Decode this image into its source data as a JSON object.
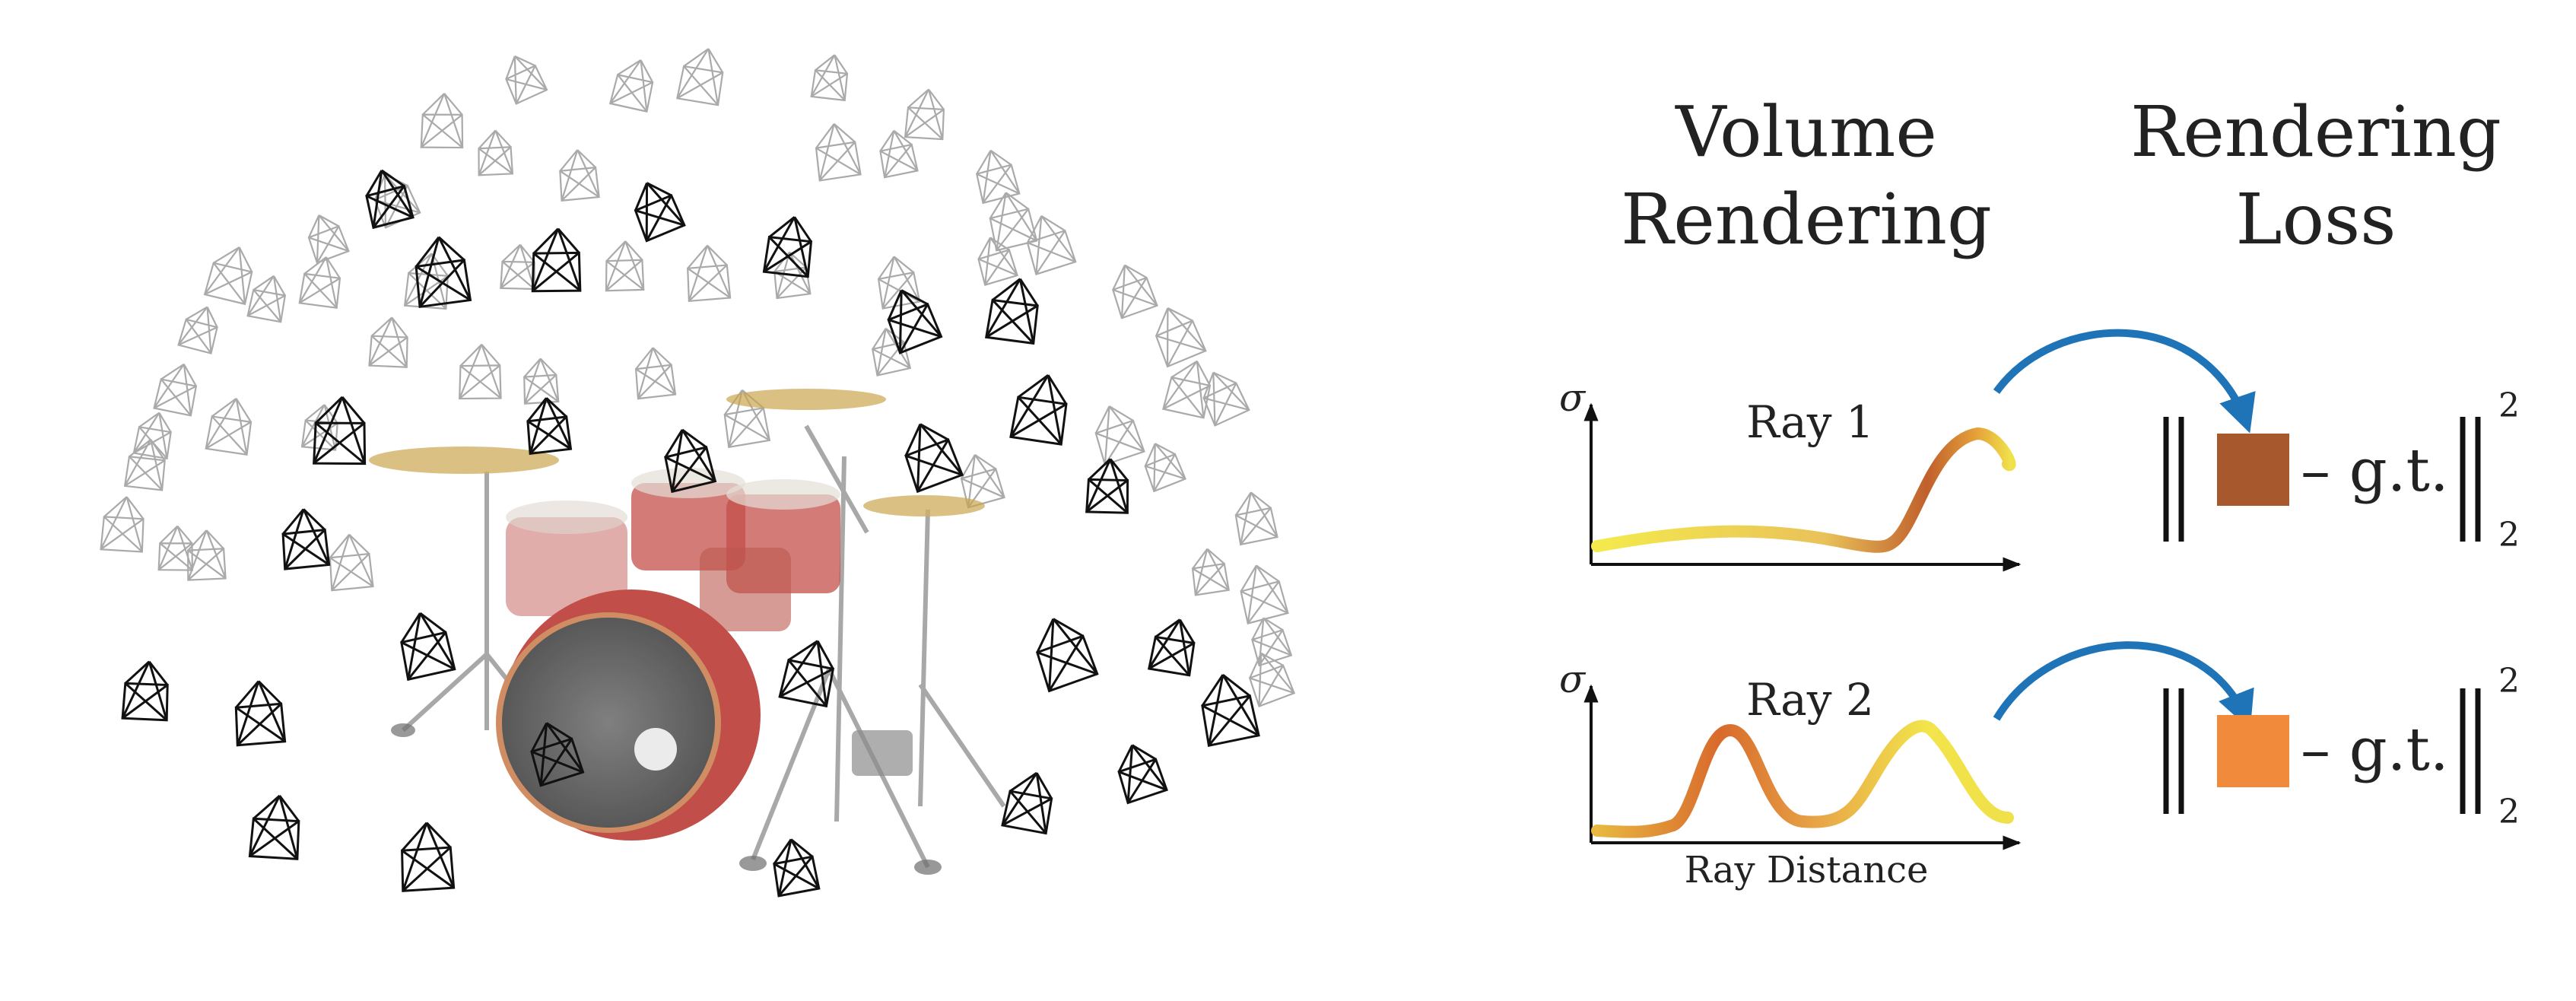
{
  "headings": {
    "volume_line1": "Volume",
    "volume_line2": "Rendering",
    "loss_line1": "Rendering",
    "loss_line2": "Loss"
  },
  "plots": [
    {
      "ray_label": "Ray 1",
      "y_symbol": "σ",
      "swatch_color": "#a8582d",
      "gt_label": "– g.t.",
      "exp_label": "2",
      "sub_label": "2"
    },
    {
      "ray_label": "Ray 2",
      "y_symbol": "σ",
      "swatch_color": "#f28a3c",
      "gt_label": "– g.t.",
      "exp_label": "2",
      "sub_label": "2"
    }
  ],
  "x_axis_label": "Ray Distance",
  "colors": {
    "arrow": "#1f74b8",
    "curve_low": "#f2e64a",
    "curve_mid": "#e8a23e",
    "curve_high": "#b4542a",
    "drum_red": "#b8302a",
    "drum_head": "#4a4a4a",
    "cymbal": "#c9a24a",
    "camera_dark": "#111111",
    "camera_light": "#aaaaaa"
  }
}
